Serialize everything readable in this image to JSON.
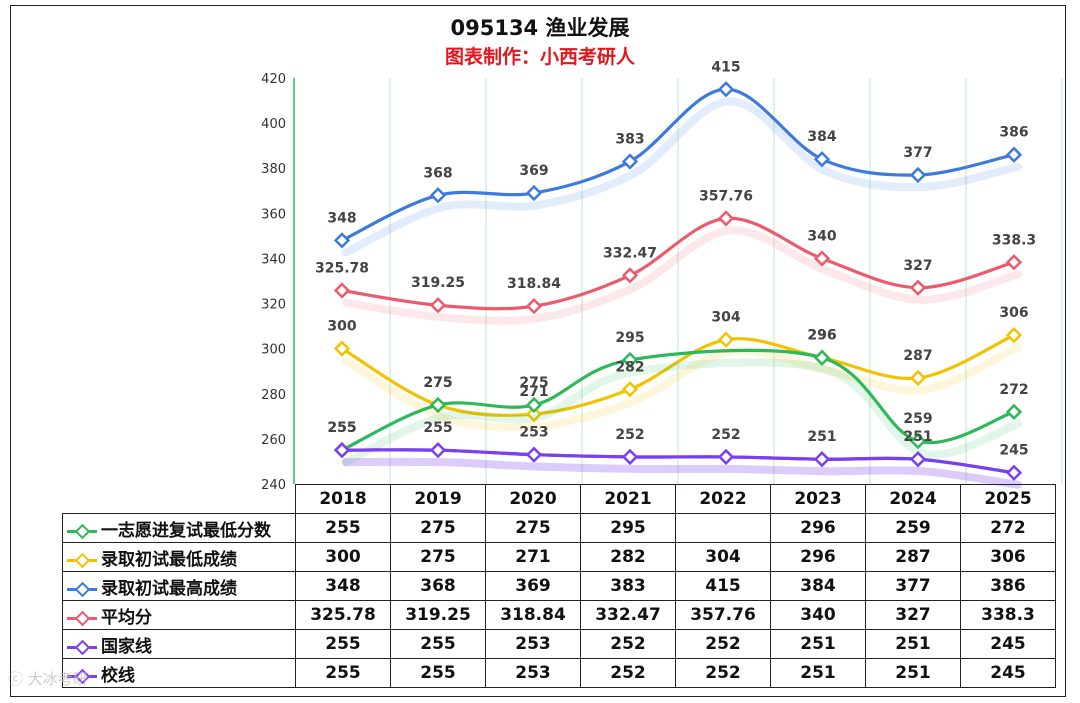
{
  "title": "095134 渔业发展",
  "subtitle": "图表制作：小西考研人",
  "watermark": "ⓒ 大冰考研",
  "chart_data": {
    "type": "line",
    "categories": [
      "2018",
      "2019",
      "2020",
      "2021",
      "2022",
      "2023",
      "2024",
      "2025"
    ],
    "ylim": [
      240,
      420
    ],
    "yticks": [
      240,
      260,
      280,
      300,
      320,
      340,
      360,
      380,
      400,
      420
    ],
    "grid": "vertical",
    "legend": "data-table",
    "series": [
      {
        "name": "一志愿进复试最低分数",
        "color": "#2db85a",
        "values": [
          255,
          275,
          275,
          295,
          null,
          296,
          259,
          272
        ],
        "labels": [
          "255",
          "275",
          "275",
          "295",
          "",
          "296",
          "259",
          "272"
        ]
      },
      {
        "name": "录取初试最低成绩",
        "color": "#f2c200",
        "values": [
          300,
          275,
          271,
          282,
          304,
          296,
          287,
          306
        ],
        "labels": [
          "300",
          "275",
          "271",
          "282",
          "304",
          "296",
          "287",
          "306"
        ]
      },
      {
        "name": "录取初试最高成绩",
        "color": "#3c7ae0",
        "values": [
          348,
          368,
          369,
          383,
          415,
          384,
          377,
          386
        ],
        "labels": [
          "348",
          "368",
          "369",
          "383",
          "415",
          "384",
          "377",
          "386"
        ]
      },
      {
        "name": "平均分",
        "color": "#ec5a6c",
        "values": [
          325.78,
          319.25,
          318.84,
          332.47,
          357.76,
          340,
          327,
          338.3
        ],
        "labels": [
          "325.78",
          "319.25",
          "318.84",
          "332.47",
          "357.76",
          "340",
          "327",
          "338.3"
        ]
      },
      {
        "name": "国家线",
        "color": "#7b3ff2",
        "values": [
          255,
          255,
          253,
          252,
          252,
          251,
          251,
          245
        ],
        "labels": [
          "255",
          "255",
          "253",
          "252",
          "252",
          "251",
          "251",
          "245"
        ]
      },
      {
        "name": "校线",
        "color": "#7b3ff2",
        "values": [
          255,
          255,
          253,
          252,
          252,
          251,
          251,
          245
        ],
        "labels": [
          "",
          "",
          "",
          "",
          "",
          "",
          "",
          ""
        ]
      }
    ],
    "table": {
      "header": [
        "2018",
        "2019",
        "2020",
        "2021",
        "2022",
        "2023",
        "2024",
        "2025"
      ],
      "rows": [
        {
          "name": "一志愿进复试最低分数",
          "color": "#2db85a",
          "cells": [
            "255",
            "275",
            "275",
            "295",
            "",
            "296",
            "259",
            "272"
          ]
        },
        {
          "name": "录取初试最低成绩",
          "color": "#f2c200",
          "cells": [
            "300",
            "275",
            "271",
            "282",
            "304",
            "296",
            "287",
            "306"
          ]
        },
        {
          "name": "录取初试最高成绩",
          "color": "#3c7ae0",
          "cells": [
            "348",
            "368",
            "369",
            "383",
            "415",
            "384",
            "377",
            "386"
          ]
        },
        {
          "name": "平均分",
          "color": "#ec5a6c",
          "cells": [
            "325.78",
            "319.25",
            "318.84",
            "332.47",
            "357.76",
            "340",
            "327",
            "338.3"
          ]
        },
        {
          "name": "国家线",
          "color": "#7b3ff2",
          "cells": [
            "255",
            "255",
            "253",
            "252",
            "252",
            "251",
            "251",
            "245"
          ]
        },
        {
          "name": "校线",
          "color": "#7b3ff2",
          "cells": [
            "255",
            "255",
            "253",
            "252",
            "252",
            "251",
            "251",
            "245"
          ]
        }
      ]
    }
  }
}
